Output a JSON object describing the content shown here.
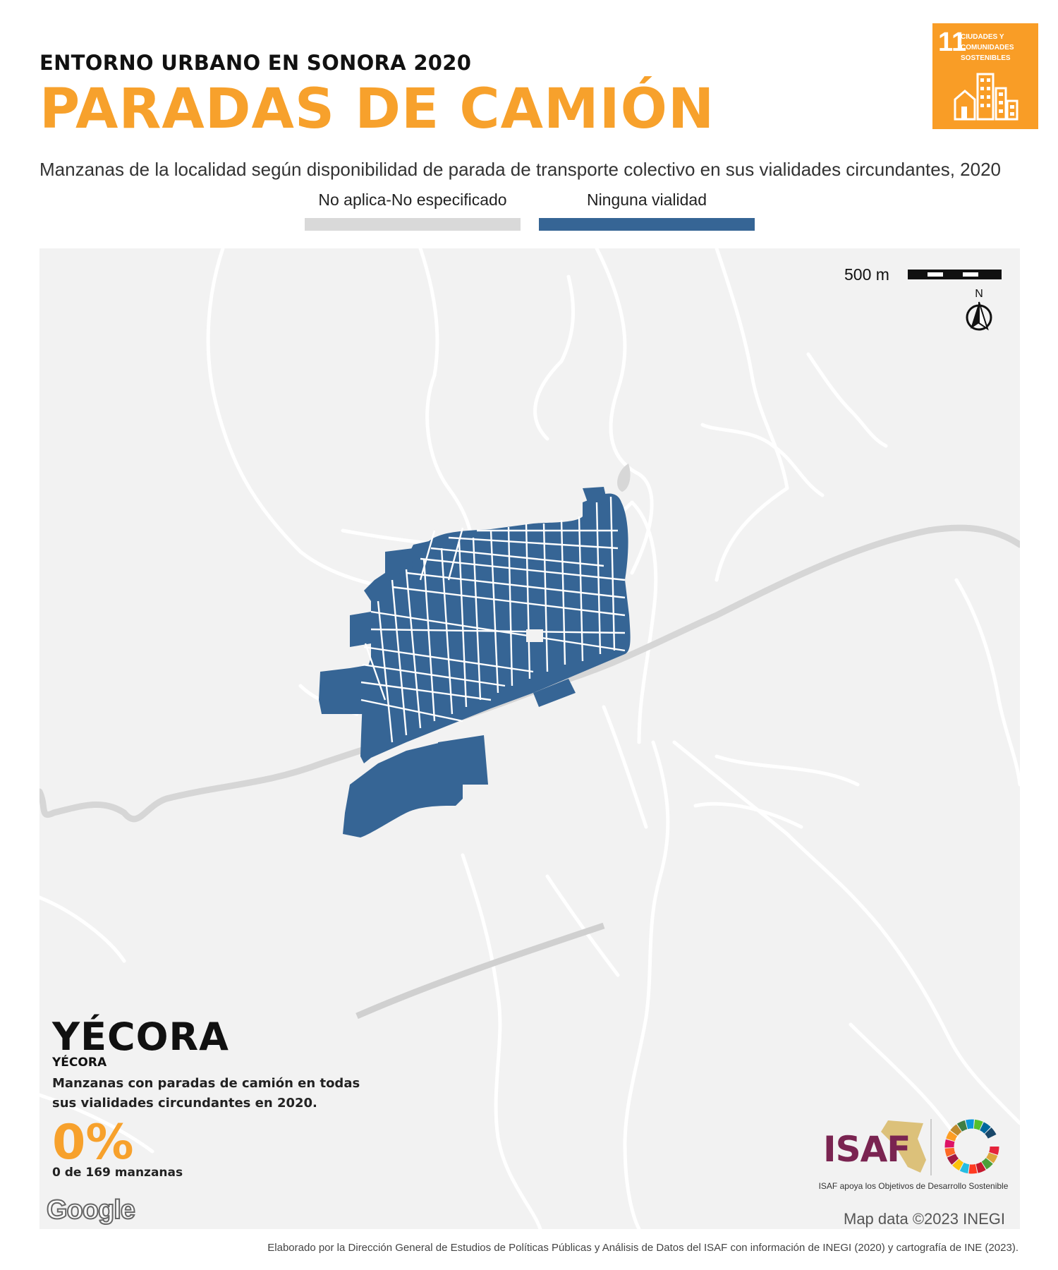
{
  "header": {
    "kicker": "ENTORNO URBANO EN SONORA 2020",
    "title": "PARADAS DE CAMIÓN",
    "subtitle": "Manzanas de la localidad según disponibilidad de parada de transporte colectivo en sus vialidades circundantes, 2020"
  },
  "sdg_badge": {
    "number": "11",
    "text": "CIUDADES Y COMUNIDADES SOSTENIBLES",
    "color": "#f99d26",
    "icon": "city-buildings-icon"
  },
  "legend": [
    {
      "label": "No aplica-No especificado",
      "color": "#d9d9d9"
    },
    {
      "label": "Ninguna vialidad",
      "color": "#366595"
    }
  ],
  "map": {
    "scale_label": "500 m",
    "north_label": "N",
    "background": "#f2f2f2",
    "road_color": "#ffffff",
    "highway_color": "#d4d4d4",
    "block_color": "#366595",
    "attribution": "Map data ©2023 INEGI",
    "provider": "Google"
  },
  "locality": {
    "name": "YÉCORA",
    "municipality": "YÉCORA",
    "description": "Manzanas con paradas de camión en todas sus vialidades circundantes en 2020.",
    "percent": "0%",
    "count": "0 de 169 manzanas"
  },
  "isaf": {
    "logo_text": "ISAF",
    "tagline": "ISAF apoya los Objetivos de Desarrollo Sostenible",
    "ods_icon": "sdg-wheel-icon"
  },
  "footer": {
    "credit": "Elaborado por la Dirección General de Estudios de Políticas Públicas y Análisis de Datos del ISAF con información de INEGI (2020) y cartografía de INE (2023)."
  }
}
